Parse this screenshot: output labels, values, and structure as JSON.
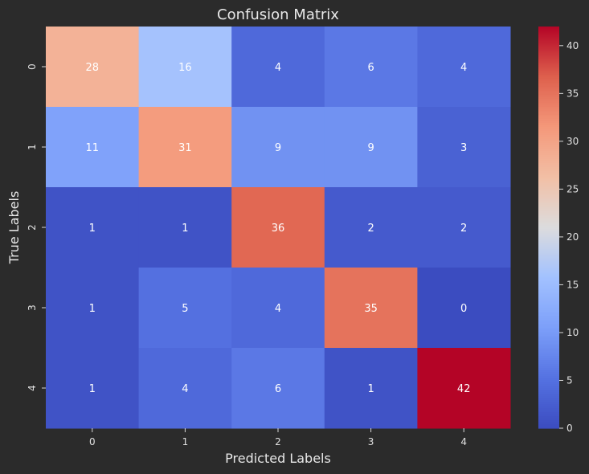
{
  "chart_data": {
    "type": "heatmap",
    "title": "Confusion Matrix",
    "xlabel": "Predicted Labels",
    "ylabel": "True Labels",
    "x_categories": [
      "0",
      "1",
      "2",
      "3",
      "4"
    ],
    "y_categories": [
      "0",
      "1",
      "2",
      "3",
      "4"
    ],
    "values": [
      [
        28,
        16,
        4,
        6,
        4
      ],
      [
        11,
        31,
        9,
        9,
        3
      ],
      [
        1,
        1,
        36,
        2,
        2
      ],
      [
        1,
        5,
        4,
        35,
        0
      ],
      [
        1,
        4,
        6,
        1,
        42
      ]
    ],
    "colormap": "coolwarm",
    "vmin": 0,
    "vmax": 42,
    "colorbar_ticks": [
      0,
      5,
      10,
      15,
      20,
      25,
      30,
      35,
      40
    ],
    "colors": {
      "background": "#2b2b2b",
      "text": "#e8e8e8"
    }
  }
}
